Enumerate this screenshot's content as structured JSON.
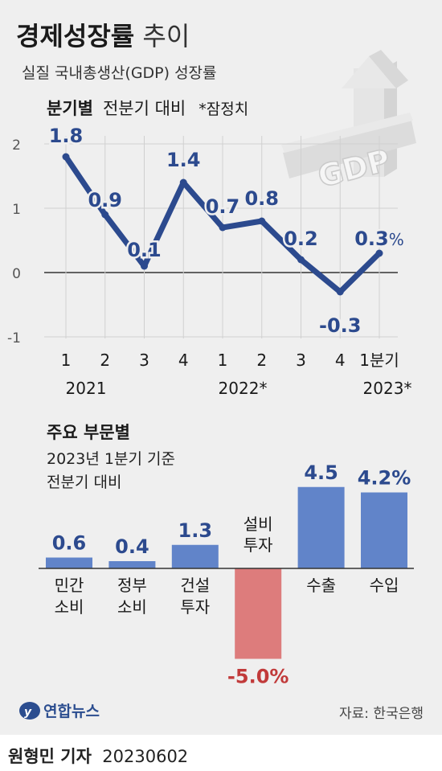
{
  "header": {
    "title_bold": "경제성장률",
    "title_light": " 추이",
    "subtitle": "실질 국내총생산(GDP) 성장률"
  },
  "quarterly": {
    "heading": "분기별",
    "heading_note": "전분기 대비",
    "heading_star": "*잠정치",
    "percent_unit": "%"
  },
  "sectors": {
    "heading": "주요 부문별",
    "note_line1": "2023년 1분기 기준",
    "note_line2": "전분기 대비"
  },
  "footer": {
    "logo_text": "연합뉴스",
    "source": "자료: 한국은행"
  },
  "byline": {
    "name": "원형민 기자",
    "date": "20230602"
  },
  "colors": {
    "line": "#2c4a8e",
    "positive_bar": "#6184c9",
    "negative_bar": "#dd7c7c",
    "negative_label": "#c13a3a",
    "value_label": "#2c4a8e",
    "background": "#efefef"
  },
  "chart_data": [
    {
      "type": "line",
      "title": "분기별",
      "subtitle": "전분기 대비",
      "ylabel": "",
      "unit": "%",
      "ylim": [
        -1,
        2
      ],
      "yticks": [
        "2",
        "1",
        "0",
        "-1"
      ],
      "grid": true,
      "categories": [
        "1",
        "2",
        "3",
        "4",
        "1",
        "2",
        "3",
        "4",
        "1분기"
      ],
      "year_labels": [
        "2021",
        "2022*",
        "2023*"
      ],
      "values": [
        1.8,
        0.9,
        0.1,
        1.4,
        0.7,
        0.8,
        0.2,
        -0.3,
        0.3
      ],
      "value_labels": [
        "1.8",
        "0.9",
        "0.1",
        "1.4",
        "0.7",
        "0.8",
        "0.2",
        "-0.3",
        "0.3"
      ]
    },
    {
      "type": "bar",
      "title": "주요 부문별",
      "subtitle": "2023년 1분기 기준 전분기 대비",
      "categories": [
        [
          "민간",
          "소비"
        ],
        [
          "정부",
          "소비"
        ],
        [
          "건설",
          "투자"
        ],
        [
          "설비",
          "투자"
        ],
        [
          "수출"
        ],
        [
          "수입"
        ]
      ],
      "values": [
        0.6,
        0.4,
        1.3,
        -5.0,
        4.5,
        4.2
      ],
      "value_labels": [
        "0.6",
        "0.4",
        "1.3",
        "-5.0%",
        "4.5",
        "4.2%"
      ]
    }
  ]
}
